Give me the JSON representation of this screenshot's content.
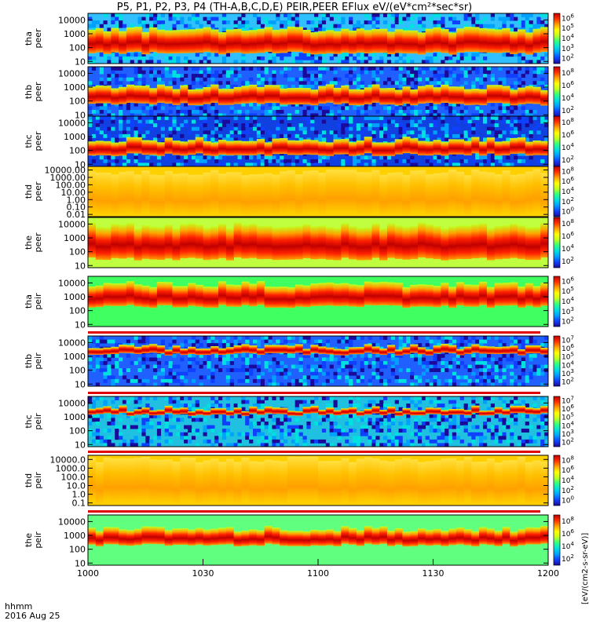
{
  "title": "P5, P1, P2, P3, P4 (TH-A,B,C,D,E) PEIR,PEER EFlux eV/(eV*cm²*sec*sr)",
  "time_axis": {
    "label_top": "hhmm",
    "label_bottom": "2016 Aug 25"
  },
  "colorbar_units": "[eV/(cm2-s-sr-eV)]",
  "colors": {
    "scale": [
      "#1a0a99",
      "#1040ff",
      "#00a0ff",
      "#00e0e0",
      "#30ff80",
      "#c0ff20",
      "#ffff00",
      "#ffa000",
      "#ff3000",
      "#c00000"
    ]
  },
  "chart_data": {
    "type": "heatmap",
    "x_ticks": [
      "1000",
      "1030",
      "1100",
      "1130",
      "1200"
    ],
    "x_range": [
      "10:00",
      "12:00"
    ],
    "panels": [
      {
        "probe": "tha",
        "species": "peer",
        "label1": "tha",
        "label2": "peer",
        "yscale": "log",
        "yticks": [
          "10",
          "100",
          "1000",
          "10000"
        ],
        "ylim": [
          7,
          30000
        ],
        "cb_ticks": [
          "10^2",
          "10^3",
          "10^4",
          "10^5",
          "10^6"
        ],
        "peak_band": [
          40,
          2000
        ],
        "bg": "#30c0ff",
        "noise": true
      },
      {
        "probe": "thb",
        "species": "peer",
        "label1": "thb",
        "label2": "peer",
        "yscale": "log",
        "yticks": [
          "10",
          "100",
          "1000",
          "10000"
        ],
        "ylim": [
          7,
          30000
        ],
        "cb_ticks": [
          "10^2",
          "10^4",
          "10^6",
          "10^8"
        ],
        "peak_band": [
          60,
          1000
        ],
        "bg": "#2060ff",
        "noise": true
      },
      {
        "probe": "thc",
        "species": "peer",
        "label1": "thc",
        "label2": "peer",
        "yscale": "log",
        "yticks": [
          "10",
          "100",
          "1000",
          "10000"
        ],
        "ylim": [
          7,
          30000
        ],
        "cb_ticks": [
          "10^2",
          "10^4",
          "10^6",
          "10^8"
        ],
        "peak_band": [
          50,
          600
        ],
        "bg": "#1040e0",
        "noise": true
      },
      {
        "probe": "thd",
        "species": "peer",
        "label1": "thd",
        "label2": "peer",
        "yscale": "log",
        "yticks": [
          "0.01",
          "0.10",
          "1.00",
          "10.00",
          "100.00",
          "1000.00",
          "10000.00"
        ],
        "ylim": [
          0.005,
          30000
        ],
        "cb_ticks": [
          "10^0",
          "10^2",
          "10^4",
          "10^6",
          "10^8"
        ],
        "peak_band": [
          0.01,
          5000
        ],
        "bg": "#ffd000",
        "noise": false
      },
      {
        "probe": "the",
        "species": "peer",
        "label1": "the",
        "label2": "peer",
        "yscale": "log",
        "yticks": [
          "10",
          "100",
          "1000",
          "10000"
        ],
        "ylim": [
          7,
          30000
        ],
        "cb_ticks": [
          "10^2",
          "10^4",
          "10^6",
          "10^8"
        ],
        "peak_band": [
          30,
          8000
        ],
        "bg": "#c0ff40",
        "noise": false
      },
      {
        "probe": "tha",
        "species": "peir",
        "label1": "tha",
        "label2": "peir",
        "yscale": "log",
        "yticks": [
          "10",
          "100",
          "1000",
          "10000"
        ],
        "ylim": [
          7,
          30000
        ],
        "cb_ticks": [
          "10^2",
          "10^3",
          "10^4",
          "10^5",
          "10^6"
        ],
        "peak_band": [
          200,
          8000
        ],
        "bg": "#40ff60",
        "noise": false
      },
      {
        "probe": "thb",
        "species": "peir",
        "label1": "thb",
        "label2": "peir",
        "yscale": "log",
        "yticks": [
          "10",
          "100",
          "1000",
          "10000"
        ],
        "ylim": [
          7,
          30000
        ],
        "cb_ticks": [
          "10^2",
          "10^3",
          "10^4",
          "10^5",
          "10^6",
          "10^7"
        ],
        "peak_band": [
          1500,
          5000
        ],
        "bg": "#2060ff",
        "noise": true
      },
      {
        "probe": "thc",
        "species": "peir",
        "label1": "thc",
        "label2": "peir",
        "yscale": "log",
        "yticks": [
          "10",
          "100",
          "1000",
          "10000"
        ],
        "ylim": [
          7,
          30000
        ],
        "cb_ticks": [
          "10^2",
          "10^3",
          "10^4",
          "10^5",
          "10^6",
          "10^7"
        ],
        "peak_band": [
          1500,
          4000
        ],
        "bg": "#20c0e0",
        "noise": true
      },
      {
        "probe": "thd",
        "species": "peir",
        "label1": "thd",
        "label2": "peir",
        "yscale": "log",
        "yticks": [
          "0.1",
          "1.0",
          "10.0",
          "100.0",
          "1000.0",
          "10000.0"
        ],
        "ylim": [
          0.05,
          30000
        ],
        "cb_ticks": [
          "10^0",
          "10^2",
          "10^4",
          "10^6",
          "10^8"
        ],
        "peak_band": [
          0.1,
          10000
        ],
        "bg": "#ffd000",
        "noise": false
      },
      {
        "probe": "the",
        "species": "peir",
        "label1": "the",
        "label2": "peir",
        "yscale": "log",
        "yticks": [
          "10",
          "100",
          "1000",
          "10000"
        ],
        "ylim": [
          7,
          30000
        ],
        "cb_ticks": [
          "10^2",
          "10^4",
          "10^6",
          "10^8"
        ],
        "peak_band": [
          200,
          3000
        ],
        "bg": "#60ff80",
        "noise": false
      }
    ]
  }
}
